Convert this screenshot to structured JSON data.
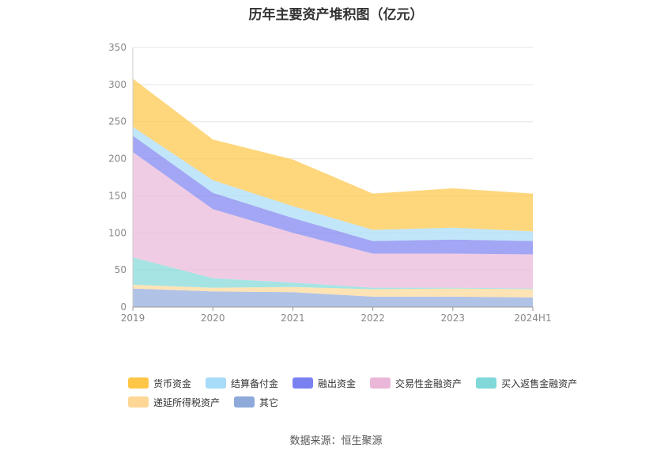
{
  "title": "历年主要资产堆积图（亿元）",
  "source": "数据来源：恒生聚源",
  "chart_data": {
    "type": "area",
    "stacked": true,
    "categories": [
      "2019",
      "2020",
      "2021",
      "2022",
      "2023",
      "2024H1"
    ],
    "ylim": [
      0,
      350
    ],
    "yticks": [
      0,
      50,
      100,
      150,
      200,
      250,
      300,
      350
    ],
    "grid": true,
    "legend_position": "bottom",
    "series": [
      {
        "name": "其它",
        "color": "#8eaadb",
        "values": [
          25,
          21,
          20,
          14,
          14,
          13
        ]
      },
      {
        "name": "递延所得税资产",
        "color": "#fed796",
        "values": [
          5,
          5,
          7,
          10,
          11,
          11
        ]
      },
      {
        "name": "买入返售金融资产",
        "color": "#80d8d8",
        "values": [
          37,
          13,
          6,
          2,
          1,
          1
        ]
      },
      {
        "name": "交易性金融资产",
        "color": "#eab7d9",
        "values": [
          142,
          93,
          67,
          46,
          46,
          46
        ]
      },
      {
        "name": "融出资金",
        "color": "#7b80f0",
        "values": [
          22,
          22,
          20,
          17,
          19,
          18
        ]
      },
      {
        "name": "结算备付金",
        "color": "#a6dcf7",
        "values": [
          12,
          17,
          16,
          15,
          16,
          13
        ]
      },
      {
        "name": "货币资金",
        "color": "#fdc646",
        "values": [
          65,
          55,
          63,
          49,
          53,
          51
        ]
      }
    ]
  },
  "legend": {
    "row1": [
      "货币资金",
      "结算备付金",
      "融出资金",
      "交易性金融资产",
      "买入返售金融资产"
    ],
    "row2": [
      "递延所得税资产",
      "其它"
    ]
  }
}
